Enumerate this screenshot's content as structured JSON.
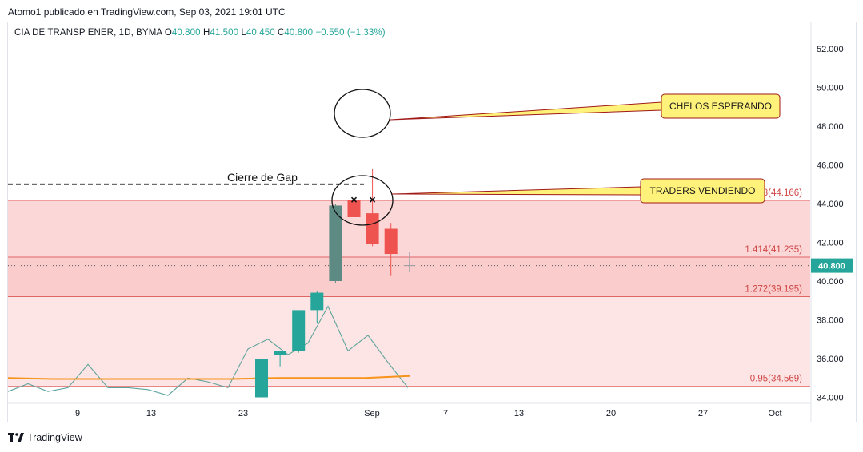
{
  "header": {
    "text": "Atomo1 publicado en TradingView.com, Sep 03, 2021 19:01 UTC"
  },
  "legend": {
    "symbol": "CIA DE TRANSP ENER, 1D, BYMA",
    "o_label": "O",
    "o_value": "40.800",
    "h_label": "H",
    "h_value": "41.500",
    "l_label": "L",
    "l_value": "40.450",
    "c_label": "C",
    "c_value": "40.800",
    "change": "−0.550 (−1.33%)"
  },
  "footer": {
    "brand": "TradingView"
  },
  "colors": {
    "up": "#26a69a",
    "down": "#ef5350",
    "dark_up": "#5d8a82",
    "fib_line": "#e06666",
    "fib_zone": "#f8b7b7",
    "fib_zone_light": "#fde2e2",
    "sma": "#f7931a",
    "indicator": "#5ea39b",
    "callout_fill": "#fff27a",
    "callout_border": "#a01818"
  },
  "chart_data": {
    "type": "candlestick",
    "ylim": [
      33.5,
      53.5
    ],
    "y_ticks": [
      "34.000",
      "36.000",
      "38.000",
      "40.000",
      "42.000",
      "44.000",
      "46.000",
      "48.000",
      "50.000",
      "52.000"
    ],
    "x_ticks": [
      "9",
      "13",
      "23",
      "Sep",
      "7",
      "13",
      "20",
      "27",
      "Oct"
    ],
    "last_price_label": "40.800",
    "last_price": 40.8,
    "candles": [
      {
        "o": 34.0,
        "h": 36.0,
        "l": 34.0,
        "c": 36.0
      },
      {
        "o": 36.2,
        "h": 36.3,
        "l": 35.6,
        "c": 36.4
      },
      {
        "o": 36.4,
        "h": 38.5,
        "l": 36.3,
        "c": 38.5
      },
      {
        "o": 38.5,
        "h": 39.5,
        "l": 37.8,
        "c": 39.4
      },
      {
        "o": 40.0,
        "h": 44.0,
        "l": 39.9,
        "c": 43.9
      },
      {
        "o": 44.2,
        "h": 44.6,
        "l": 42.0,
        "c": 43.3
      },
      {
        "o": 43.5,
        "h": 45.8,
        "l": 41.8,
        "c": 41.9
      },
      {
        "o": 42.7,
        "h": 43.0,
        "l": 40.3,
        "c": 41.4
      },
      {
        "o": 40.8,
        "h": 41.5,
        "l": 40.45,
        "c": 40.8
      }
    ],
    "fib_levels": [
      {
        "label": "1.618(44.166)",
        "value": 44.166
      },
      {
        "label": "1.414(41.235)",
        "value": 41.235
      },
      {
        "label": "1.272(39.195)",
        "value": 39.195
      },
      {
        "label": "0.95(34.569)",
        "value": 34.569
      }
    ],
    "gap_close": 45.0,
    "sma_values": [
      35.0,
      34.95,
      34.95,
      34.95,
      34.95,
      34.95,
      35.0,
      35.0,
      35.0,
      35.1
    ],
    "indicator_values": [
      34.3,
      34.7,
      34.3,
      34.5,
      35.7,
      34.5,
      34.5,
      34.4,
      34.1,
      35.0,
      34.8,
      34.5,
      36.5,
      37.0,
      36.2,
      36.8,
      38.7,
      36.4,
      37.2,
      35.8,
      34.5
    ],
    "annotations": [
      {
        "text": "CHELOS ESPERANDO"
      },
      {
        "text": "TRADERS VENDIENDO"
      },
      {
        "text": "Cierre de Gap"
      }
    ]
  }
}
